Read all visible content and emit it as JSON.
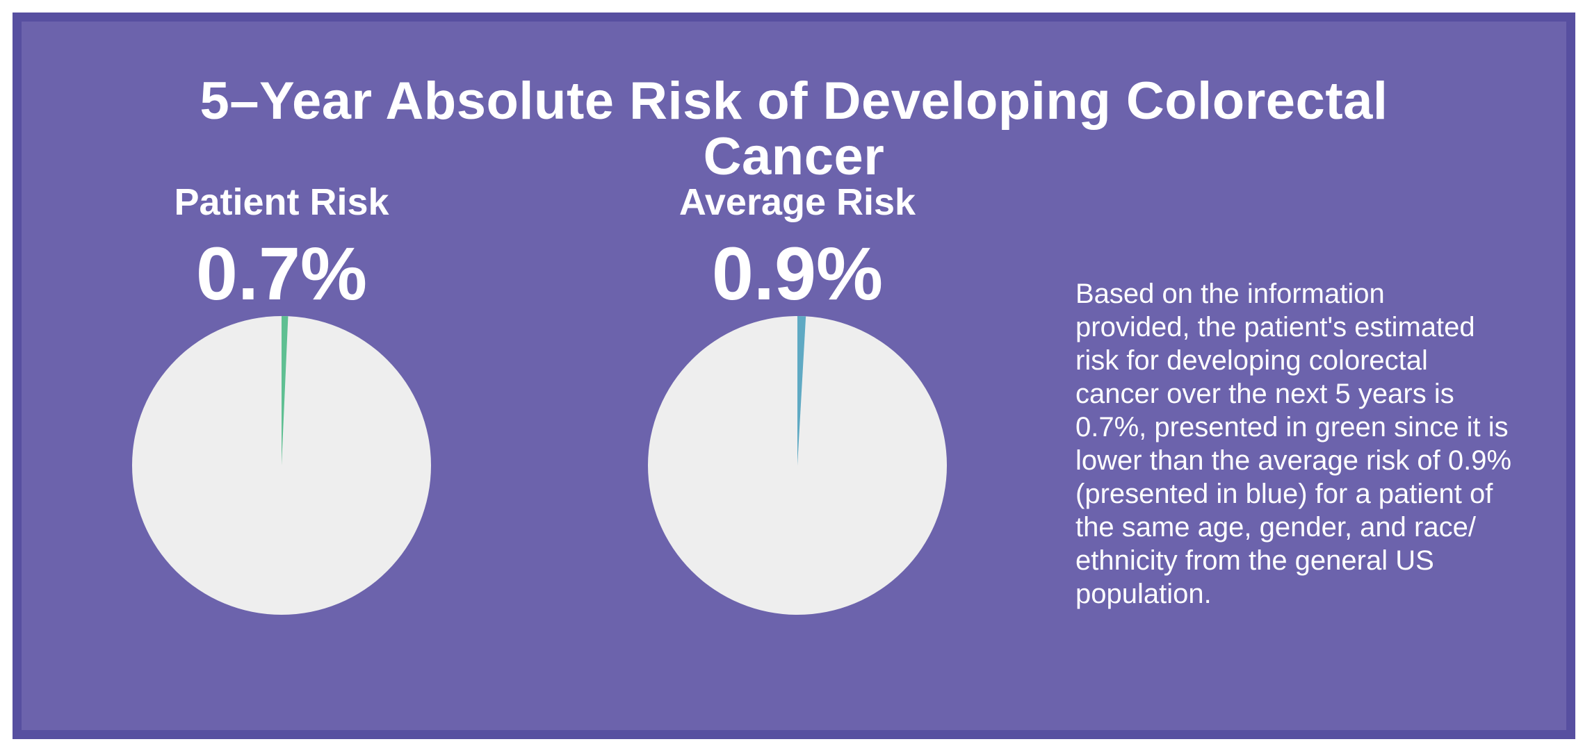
{
  "page": {
    "background_color": "#ffffff"
  },
  "card": {
    "background_color": "#6C63AC",
    "border_color": "#574FA0",
    "text_color": "#ffffff"
  },
  "title": {
    "line1": "5–Year Absolute Risk of Developing Colorectal",
    "line2": "Cancer"
  },
  "chart_data": [
    {
      "type": "pie",
      "title": "Patient Risk",
      "display_value": "0.7%",
      "slice_percent": 0.7,
      "remainder_percent": 99.3,
      "slice_color": "#5FBF92",
      "base_color": "#EEEEEE",
      "start_angle_deg": 0,
      "direction": "clockwise",
      "legend": "none"
    },
    {
      "type": "pie",
      "title": "Average Risk",
      "display_value": "0.9%",
      "slice_percent": 0.9,
      "remainder_percent": 99.1,
      "slice_color": "#5FA9C3",
      "base_color": "#EEEEEE",
      "start_angle_deg": 0,
      "direction": "clockwise",
      "legend": "none"
    }
  ],
  "description_lines": [
    "Based on the information",
    "provided, the patient's estimated",
    "risk for developing colorectal",
    "cancer over the next 5 years is",
    "0.7%, presented in green since it is",
    "lower than the average risk of 0.9%",
    "(presented in blue) for a patient of",
    "the same age, gender, and race/",
    "ethnicity from the general US",
    "population."
  ]
}
